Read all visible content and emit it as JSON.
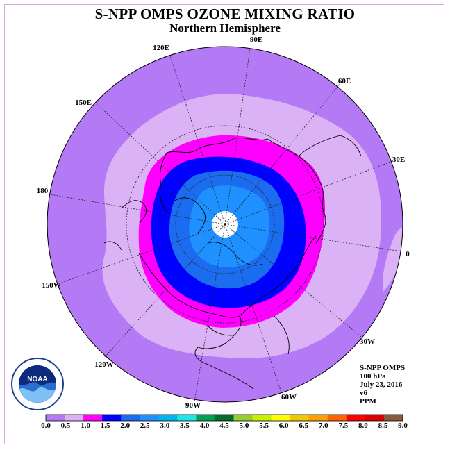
{
  "title": "S-NPP OMPS OZONE MIXING RATIO",
  "subtitle": "Northern Hemisphere",
  "longitude_labels": [
    "90E",
    "60E",
    "30E",
    "0",
    "30W",
    "60W",
    "90W",
    "120W",
    "150W",
    "180",
    "150E",
    "120E"
  ],
  "info": {
    "instrument": "S-NPP OMPS",
    "pressure": "100 hPa",
    "date": "July 23, 2016",
    "version": "v6",
    "unit": "PPM"
  },
  "logo": {
    "text": "NOAA"
  },
  "colorbar": {
    "ticks": [
      "0.0",
      "0.5",
      "1.0",
      "1.5",
      "2.0",
      "2.5",
      "3.0",
      "3.5",
      "4.0",
      "4.5",
      "5.0",
      "5.5",
      "6.0",
      "6.5",
      "7.0",
      "7.5",
      "8.0",
      "8.5",
      "9.0"
    ],
    "colors": [
      "#b479f4",
      "#dcb2f6",
      "#ff00ff",
      "#0000ff",
      "#1c6cf0",
      "#1e90ff",
      "#00b4f0",
      "#1ee6e6",
      "#00a050",
      "#006e28",
      "#9acd32",
      "#c8f000",
      "#ffff00",
      "#f0c800",
      "#ffa000",
      "#ff6400",
      "#ff0000",
      "#dc0000",
      "#8b5a3c"
    ]
  },
  "map_colors": {
    "outer": "#b479f4",
    "band_0_5": "#dcb2f6",
    "band_1_0": "#ff00ff",
    "band_1_5": "#0000ff",
    "band_2_0": "#1c6cf0",
    "band_2_5": "#1e90ff",
    "pole": "#ffffff"
  }
}
